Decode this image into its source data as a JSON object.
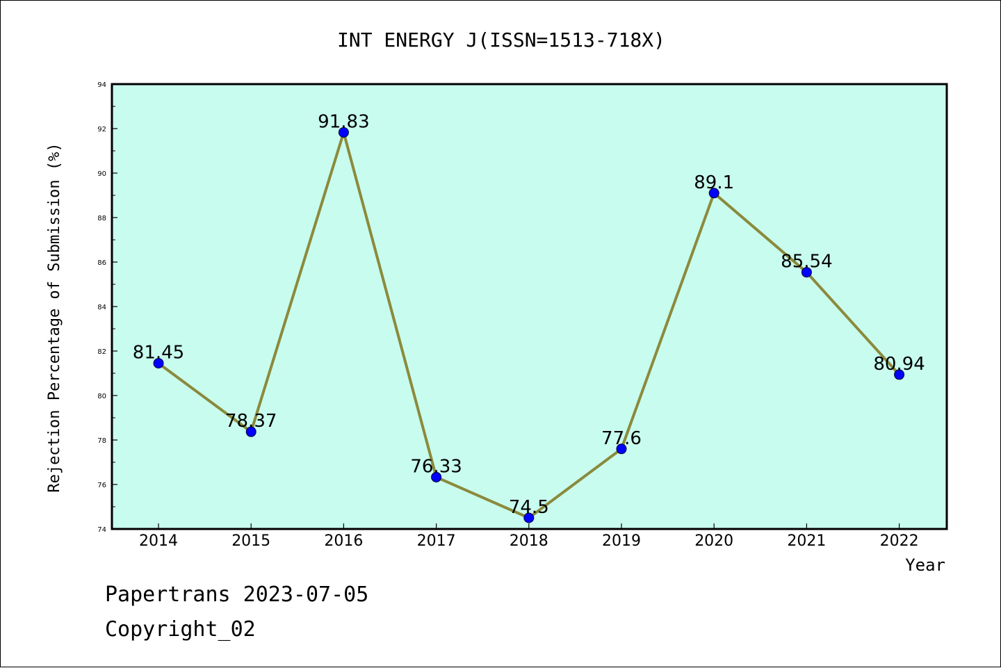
{
  "chart_data": {
    "type": "line",
    "title": "INT ENERGY J(ISSN=1513-718X)",
    "xlabel": "Year",
    "ylabel": "Rejection Percentage of Submission (%)",
    "categories": [
      "2014",
      "2015",
      "2016",
      "2017",
      "2018",
      "2019",
      "2020",
      "2021",
      "2022"
    ],
    "values": [
      81.45,
      78.37,
      91.83,
      76.33,
      74.5,
      77.6,
      89.1,
      85.54,
      80.94
    ],
    "data_labels": [
      "81.45",
      "78.37",
      "91.83",
      "76.33",
      "74.5",
      "77.6",
      "89.1",
      "85.54",
      "80.94"
    ],
    "ylim": [
      74,
      94
    ],
    "yticks": [
      74,
      76,
      78,
      80,
      82,
      84,
      86,
      88,
      90,
      92,
      94
    ],
    "ytick_labels": [
      "74",
      "76",
      "78",
      "80",
      "82",
      "84",
      "86",
      "88",
      "90",
      "92",
      "94"
    ],
    "grid": false,
    "legend": "none",
    "colors": {
      "plot_background": "#c8fcee",
      "line": "#8b8a3c",
      "marker": "#0000ff",
      "axes": "#000000"
    }
  },
  "footer": {
    "line1": "Papertrans 2023-07-05",
    "line2": "Copyright_02"
  }
}
